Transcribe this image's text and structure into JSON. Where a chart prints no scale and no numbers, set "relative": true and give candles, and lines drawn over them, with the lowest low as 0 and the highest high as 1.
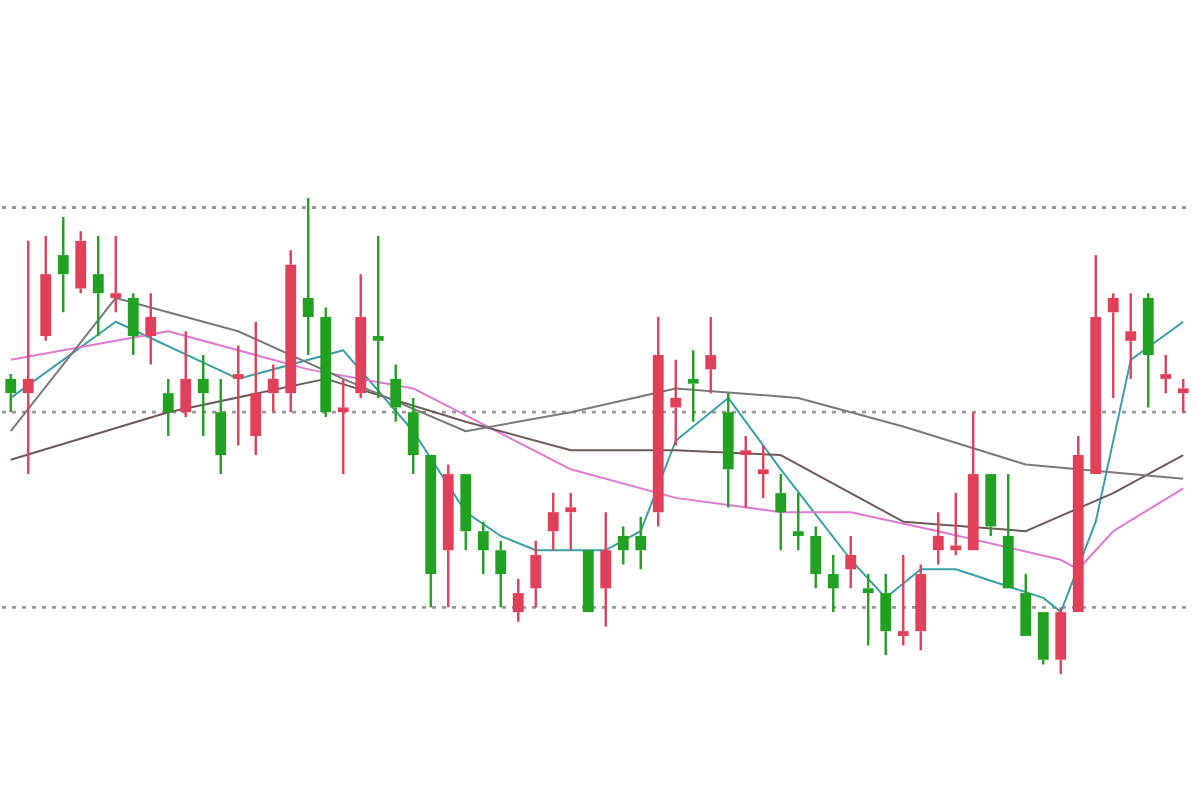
{
  "chart_data": {
    "type": "candlestick",
    "relative": true,
    "marker": "none",
    "categories": [
      null,
      null,
      null,
      null,
      null,
      null,
      null,
      null,
      null,
      null,
      null,
      null,
      null,
      null,
      null,
      null,
      null,
      null,
      null,
      null,
      null,
      null,
      null,
      null,
      null,
      null,
      null,
      null,
      null,
      null,
      null,
      null,
      null,
      null,
      null,
      null,
      null,
      null,
      null,
      null,
      null,
      null,
      null,
      null,
      null,
      null,
      null,
      null,
      null,
      null,
      null,
      null,
      null,
      null,
      null,
      null,
      null,
      null,
      null,
      null,
      null,
      null,
      null,
      null,
      null,
      null,
      null,
      null
    ],
    "ohlc": [
      [
        0.62,
        0.63,
        0.55,
        0.59
      ],
      [
        0.59,
        0.91,
        0.42,
        0.62
      ],
      [
        0.71,
        0.92,
        0.7,
        0.84
      ],
      [
        0.88,
        0.96,
        0.76,
        0.84
      ],
      [
        0.81,
        0.93,
        0.8,
        0.91
      ],
      [
        0.84,
        0.92,
        0.71,
        0.8
      ],
      [
        0.79,
        0.92,
        0.76,
        0.8
      ],
      [
        0.79,
        0.8,
        0.67,
        0.71
      ],
      [
        0.71,
        0.8,
        0.65,
        0.75
      ],
      [
        0.59,
        0.62,
        0.5,
        0.55
      ],
      [
        0.55,
        0.72,
        0.54,
        0.62
      ],
      [
        0.62,
        0.67,
        0.5,
        0.59
      ],
      [
        0.55,
        0.62,
        0.42,
        0.46
      ],
      [
        0.62,
        0.69,
        0.48,
        0.63
      ],
      [
        0.5,
        0.74,
        0.46,
        0.59
      ],
      [
        0.59,
        0.65,
        0.55,
        0.62
      ],
      [
        0.59,
        0.89,
        0.55,
        0.86
      ],
      [
        0.79,
        1,
        0.67,
        0.75
      ],
      [
        0.75,
        0.77,
        0.54,
        0.55
      ],
      [
        0.55,
        0.62,
        0.42,
        0.56
      ],
      [
        0.59,
        0.84,
        0.58,
        0.75
      ],
      [
        0.71,
        0.92,
        0.58,
        0.7
      ],
      [
        0.62,
        0.65,
        0.53,
        0.56
      ],
      [
        0.55,
        0.58,
        0.42,
        0.46
      ],
      [
        0.46,
        0.46,
        0.14,
        0.21
      ],
      [
        0.26,
        0.44,
        0.14,
        0.42
      ],
      [
        0.42,
        0.42,
        0.26,
        0.3
      ],
      [
        0.3,
        0.32,
        0.21,
        0.26
      ],
      [
        0.26,
        0.28,
        0.14,
        0.21
      ],
      [
        0.13,
        0.2,
        0.11,
        0.17
      ],
      [
        0.18,
        0.28,
        0.14,
        0.25
      ],
      [
        0.3,
        0.38,
        0.26,
        0.34
      ],
      [
        0.34,
        0.38,
        0.26,
        0.35
      ],
      [
        0.26,
        0.26,
        0.13,
        0.13
      ],
      [
        0.18,
        0.34,
        0.1,
        0.26
      ],
      [
        0.29,
        0.31,
        0.23,
        0.26
      ],
      [
        0.29,
        0.33,
        0.22,
        0.26
      ],
      [
        0.34,
        0.75,
        0.31,
        0.67
      ],
      [
        0.56,
        0.66,
        0.48,
        0.58
      ],
      [
        0.62,
        0.68,
        0.53,
        0.61
      ],
      [
        0.64,
        0.75,
        0.59,
        0.67
      ],
      [
        0.55,
        0.59,
        0.35,
        0.43
      ],
      [
        0.46,
        0.5,
        0.35,
        0.47
      ],
      [
        0.42,
        0.48,
        0.37,
        0.43
      ],
      [
        0.38,
        0.42,
        0.26,
        0.34
      ],
      [
        0.3,
        0.38,
        0.26,
        0.29
      ],
      [
        0.29,
        0.31,
        0.18,
        0.21
      ],
      [
        0.21,
        0.25,
        0.13,
        0.18
      ],
      [
        0.22,
        0.29,
        0.18,
        0.25
      ],
      [
        0.18,
        0.21,
        0.06,
        0.17
      ],
      [
        0.17,
        0.21,
        0.04,
        0.09
      ],
      [
        0.08,
        0.25,
        0.06,
        0.09
      ],
      [
        0.09,
        0.23,
        0.05,
        0.21
      ],
      [
        0.26,
        0.34,
        0.23,
        0.29
      ],
      [
        0.26,
        0.38,
        0.25,
        0.27
      ],
      [
        0.26,
        0.55,
        0.26,
        0.42
      ],
      [
        0.42,
        0.42,
        0.29,
        0.31
      ],
      [
        0.29,
        0.42,
        0.18,
        0.18
      ],
      [
        0.17,
        0.21,
        0.08,
        0.08
      ],
      [
        0.13,
        0.13,
        0.02,
        0.03
      ],
      [
        0.03,
        0.14,
        0,
        0.13
      ],
      [
        0.13,
        0.5,
        0.13,
        0.46
      ],
      [
        0.42,
        0.88,
        0.42,
        0.75
      ],
      [
        0.76,
        0.8,
        0.58,
        0.79
      ],
      [
        0.7,
        0.8,
        0.62,
        0.72
      ],
      [
        0.79,
        0.8,
        0.56,
        0.67
      ],
      [
        0.62,
        0.67,
        0.59,
        0.63
      ],
      [
        0.59,
        0.62,
        0.55,
        0.6
      ]
    ],
    "colors": [
      "#22a022",
      "#e0405a",
      "#e0405a",
      "#22a022",
      "#e0405a",
      "#22a022",
      "#e0405a",
      "#22a022",
      "#e0405a",
      "#22a022",
      "#e0405a",
      "#22a022",
      "#22a022",
      "#e0405a",
      "#e0405a",
      "#e0405a",
      "#e0405a",
      "#22a022",
      "#22a022",
      "#e0405a",
      "#e0405a",
      "#22a022",
      "#22a022",
      "#22a022",
      "#22a022",
      "#e0405a",
      "#22a022",
      "#22a022",
      "#22a022",
      "#e0405a",
      "#e0405a",
      "#e0405a",
      "#e0405a",
      "#22a022",
      "#e0405a",
      "#22a022",
      "#22a022",
      "#e0405a",
      "#e0405a",
      "#22a022",
      "#e0405a",
      "#22a022",
      "#e0405a",
      "#e0405a",
      "#22a022",
      "#22a022",
      "#22a022",
      "#22a022",
      "#e0405a",
      "#22a022",
      "#22a022",
      "#e0405a",
      "#e0405a",
      "#e0405a",
      "#e0405a",
      "#e0405a",
      "#22a022",
      "#22a022",
      "#22a022",
      "#22a022",
      "#e0405a",
      "#e0405a",
      "#e0405a",
      "#e0405a",
      "#e0405a",
      "#22a022",
      "#e0405a",
      "#e0405a"
    ],
    "series": [
      {
        "type": "line",
        "color": "#7a7a7a",
        "values": [
          0.51,
          null,
          null,
          null,
          null,
          null,
          0.79,
          null,
          null,
          null,
          null,
          null,
          null,
          0.72,
          null,
          null,
          null,
          null,
          null,
          0.62,
          null,
          null,
          null,
          null,
          null,
          null,
          0.51,
          null,
          null,
          null,
          null,
          null,
          0.55,
          null,
          null,
          null,
          null,
          null,
          0.6,
          null,
          null,
          null,
          null,
          null,
          null,
          0.58,
          null,
          null,
          null,
          null,
          null,
          0.52,
          null,
          null,
          null,
          null,
          null,
          null,
          0.44,
          null,
          null,
          null,
          null,
          null,
          0.42,
          null,
          null,
          0.41
        ]
      },
      {
        "type": "line",
        "color": "#6e5a5a",
        "values": [
          0.45,
          null,
          null,
          null,
          null,
          null,
          null,
          null,
          null,
          0.55,
          null,
          null,
          null,
          null,
          null,
          null,
          null,
          null,
          0.62,
          null,
          null,
          null,
          null,
          null,
          null,
          null,
          0.53,
          null,
          null,
          null,
          null,
          null,
          0.47,
          null,
          null,
          null,
          null,
          null,
          0.47,
          null,
          null,
          null,
          null,
          null,
          0.46,
          null,
          null,
          null,
          null,
          null,
          null,
          0.32,
          null,
          null,
          null,
          null,
          null,
          null,
          0.3,
          null,
          null,
          null,
          null,
          0.38,
          null,
          null,
          null,
          0.46
        ]
      },
      {
        "type": "line",
        "color": "#e07ad0",
        "values": [
          0.66,
          null,
          null,
          null,
          null,
          null,
          null,
          null,
          null,
          0.72,
          null,
          null,
          null,
          null,
          null,
          null,
          null,
          0.64,
          null,
          null,
          null,
          null,
          null,
          0.6,
          null,
          null,
          null,
          null,
          null,
          null,
          null,
          null,
          0.43,
          null,
          null,
          null,
          null,
          null,
          0.37,
          null,
          null,
          null,
          null,
          null,
          0.34,
          null,
          null,
          null,
          0.34,
          null,
          null,
          null,
          null,
          0.3,
          null,
          null,
          null,
          null,
          null,
          null,
          0.24,
          0.22,
          null,
          0.3,
          null,
          null,
          null,
          0.39
        ]
      },
      {
        "type": "line",
        "color": "#3aa0a8",
        "values": [
          0.58,
          null,
          null,
          null,
          null,
          null,
          0.74,
          null,
          null,
          null,
          null,
          null,
          null,
          0.62,
          null,
          null,
          null,
          null,
          null,
          0.68,
          null,
          null,
          null,
          0.51,
          null,
          null,
          0.34,
          null,
          0.29,
          null,
          0.26,
          null,
          null,
          null,
          0.26,
          null,
          0.3,
          null,
          0.49,
          null,
          null,
          0.58,
          null,
          null,
          0.43,
          null,
          null,
          null,
          0.24,
          null,
          0.16,
          null,
          0.22,
          null,
          0.22,
          null,
          null,
          null,
          null,
          0.16,
          0.13,
          null,
          0.32,
          null,
          0.66,
          null,
          null,
          0.74
        ]
      }
    ],
    "ref_lines": [
      {
        "axis": "y",
        "value": 0.98,
        "color": "#999999",
        "line_style": "dotted"
      },
      {
        "axis": "y",
        "value": 0.55,
        "color": "#999999",
        "line_style": "dotted"
      },
      {
        "axis": "y",
        "value": 0.14,
        "color": "#999999",
        "line_style": "dotted"
      }
    ]
  }
}
